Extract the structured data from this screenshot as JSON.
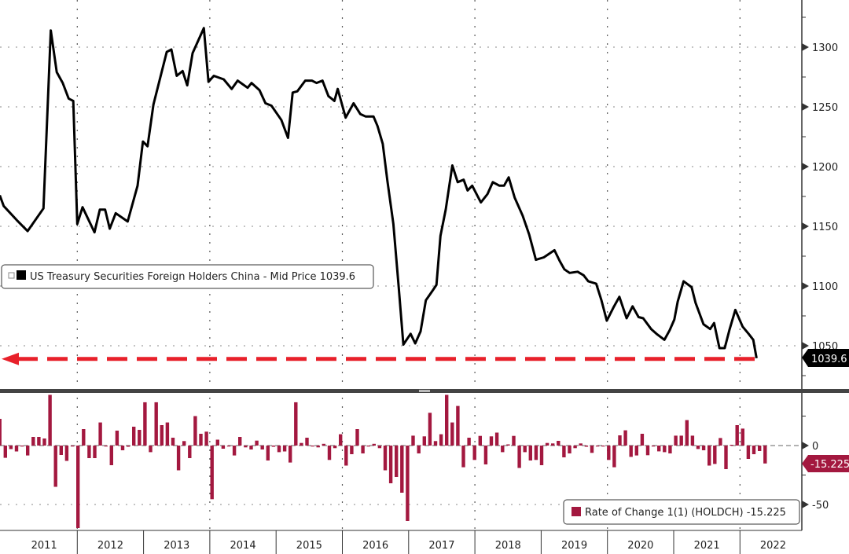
{
  "chart_data": [
    {
      "type": "line",
      "title": "US Treasury Securities Foreign Holders China - Mid Price",
      "legend": {
        "label": "US Treasury Securities Foreign Holders China - Mid Price 1039.6",
        "placement": "middle-left"
      },
      "last_value_label": "1039.6",
      "color": "#000000",
      "annotation_color": "#e8202a",
      "annotation": "dashed arrow at last value 1039.6",
      "ylim": [
        1015,
        1340
      ],
      "yticks": [
        1050,
        1100,
        1150,
        1200,
        1250,
        1300
      ],
      "xlim": [
        2010.83,
        2023.0
      ],
      "x": [
        2010.83,
        2010.89,
        2011.09,
        2011.25,
        2011.49,
        2011.6,
        2011.69,
        2011.78,
        2011.87,
        2011.94,
        2012.0,
        2012.08,
        2012.26,
        2012.34,
        2012.42,
        2012.49,
        2012.58,
        2012.76,
        2012.91,
        2012.99,
        2013.06,
        2013.15,
        2013.35,
        2013.42,
        2013.5,
        2013.59,
        2013.66,
        2013.74,
        2013.91,
        2013.98,
        2014.06,
        2014.21,
        2014.33,
        2014.42,
        2014.57,
        2014.63,
        2014.75,
        2014.84,
        2014.93,
        2015.08,
        2015.18,
        2015.25,
        2015.32,
        2015.44,
        2015.54,
        2015.61,
        2015.7,
        2015.79,
        2015.88,
        2015.93,
        2016.05,
        2016.17,
        2016.27,
        2016.35,
        2016.47,
        2016.53,
        2016.61,
        2016.68,
        2016.77,
        2016.85,
        2016.92,
        2017.03,
        2017.1,
        2017.18,
        2017.26,
        2017.36,
        2017.42,
        2017.48,
        2017.56,
        2017.66,
        2017.74,
        2017.83,
        2017.89,
        2017.96,
        2018.09,
        2018.19,
        2018.27,
        2018.37,
        2018.44,
        2018.51,
        2018.6,
        2018.72,
        2018.82,
        2018.92,
        2019.04,
        2019.2,
        2019.28,
        2019.35,
        2019.43,
        2019.55,
        2019.64,
        2019.71,
        2019.83,
        2019.91,
        2019.99,
        2020.09,
        2020.18,
        2020.29,
        2020.38,
        2020.47,
        2020.54,
        2020.66,
        2020.74,
        2020.86,
        2020.94,
        2021.01,
        2021.06,
        2021.15,
        2021.27,
        2021.33,
        2021.45,
        2021.55,
        2021.61,
        2021.69,
        2021.77,
        2021.84,
        2021.93,
        2022.04,
        2022.13,
        2022.2,
        2022.25
      ],
      "y": [
        1176,
        1167,
        1155,
        1146,
        1165,
        1314,
        1279,
        1270,
        1257,
        1255,
        1152,
        1166,
        1145,
        1164,
        1164,
        1148,
        1161,
        1154,
        1184,
        1221,
        1217,
        1252,
        1296,
        1298,
        1276,
        1280,
        1268,
        1295,
        1316,
        1271,
        1276,
        1273,
        1265,
        1272,
        1266,
        1270,
        1264,
        1253,
        1251,
        1239,
        1224,
        1262,
        1263,
        1272,
        1272,
        1270,
        1272,
        1259,
        1255,
        1265,
        1241,
        1253,
        1244,
        1242,
        1242,
        1234,
        1219,
        1188,
        1152,
        1099,
        1051,
        1060,
        1052,
        1062,
        1088,
        1096,
        1101,
        1142,
        1164,
        1201,
        1187,
        1189,
        1180,
        1184,
        1170,
        1177,
        1187,
        1184,
        1184,
        1191,
        1174,
        1159,
        1143,
        1122,
        1124,
        1130,
        1121,
        1114,
        1111,
        1112,
        1109,
        1104,
        1102,
        1088,
        1071,
        1082,
        1091,
        1073,
        1083,
        1074,
        1073,
        1064,
        1060,
        1055,
        1063,
        1072,
        1087,
        1104,
        1099,
        1086,
        1068,
        1064,
        1069,
        1048,
        1048,
        1063,
        1080,
        1066,
        1060,
        1055,
        1039.6
      ]
    },
    {
      "type": "bar",
      "title": "Rate of Change 1(1) (HOLDCH)",
      "legend": {
        "label": "Rate of Change 1(1) (HOLDCH) -15.225",
        "placement": "bottom-right"
      },
      "last_value_label": "-15.225",
      "color": "#a3183f",
      "ylim": [
        -72,
        45
      ],
      "yticks": [
        0,
        -50
      ],
      "x_start": 2010.83,
      "x_step": 0.0843,
      "values": [
        22.7,
        -10.4,
        -3,
        -5,
        0,
        -8.4,
        7.3,
        7.3,
        6,
        43,
        -35,
        -8,
        -13,
        0,
        -70,
        14,
        -10.7,
        -10.7,
        19.6,
        0,
        -16.7,
        12.7,
        -4,
        -1,
        16,
        13.3,
        36.7,
        -5.6,
        36.7,
        17.3,
        19.6,
        6.7,
        -21,
        3.8,
        -10.7,
        25,
        10,
        11.8,
        -45.5,
        5,
        -2.7,
        0,
        -8.4,
        7.3,
        -1.5,
        -3.3,
        4.2,
        -3.3,
        -12.7,
        -1,
        -5.6,
        -5,
        -14.4,
        36.7,
        2.2,
        6.7,
        0,
        -1.5,
        1.5,
        -12.2,
        -2.2,
        9.6,
        -17,
        -7.3,
        14,
        -6.7,
        0,
        1.5,
        -2.2,
        -21,
        -32,
        -26.7,
        -40,
        -64,
        8.4,
        -6.7,
        7.8,
        27.8,
        3.8,
        9.6,
        43,
        19.6,
        33.6,
        -18.4,
        6.7,
        -12.2,
        8.2,
        -16,
        7.8,
        11,
        -5.6,
        1,
        8.2,
        -19,
        -5.6,
        -12.7,
        -12.2,
        -16.7,
        2.2,
        1.8,
        4,
        -10,
        -6.7,
        -2.2,
        1.8,
        -1,
        -6.2,
        0,
        0,
        -12.2,
        -18.4,
        8.7,
        12.9,
        -9.6,
        -8.4,
        10,
        -8.2,
        0,
        -4.9,
        -5.6,
        -6.7,
        8.4,
        8.4,
        21.6,
        8.4,
        -2.9,
        -4,
        -17,
        -15.6,
        6.4,
        -20,
        0.7,
        17.3,
        14.4,
        -11.3,
        -7.3,
        -4.7,
        -15.225
      ]
    }
  ],
  "x_axis": {
    "tick_labels": [
      "2011",
      "2012",
      "2013",
      "2014",
      "2015",
      "2016",
      "2017",
      "2018",
      "2019",
      "2020",
      "2021",
      "2022"
    ]
  }
}
